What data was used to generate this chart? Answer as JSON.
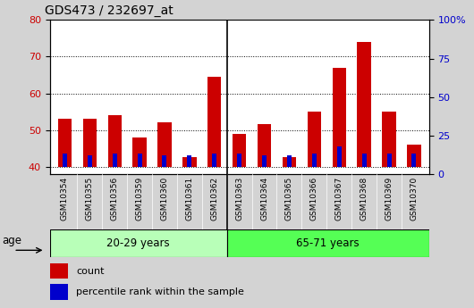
{
  "title": "GDS473 / 232697_at",
  "samples": [
    "GSM10354",
    "GSM10355",
    "GSM10356",
    "GSM10359",
    "GSM10360",
    "GSM10361",
    "GSM10362",
    "GSM10363",
    "GSM10364",
    "GSM10365",
    "GSM10366",
    "GSM10367",
    "GSM10368",
    "GSM10369",
    "GSM10370"
  ],
  "count_values": [
    53,
    53,
    54,
    48,
    52,
    42.5,
    64.5,
    49,
    51.5,
    42.5,
    55,
    67,
    74,
    55,
    46
  ],
  "percentile_values": [
    43.5,
    43,
    43.5,
    43.5,
    43,
    43,
    43.5,
    43.5,
    43,
    43,
    43.5,
    45.5,
    43.5,
    43.5,
    43.5
  ],
  "ylim_left": [
    38,
    80
  ],
  "ylim_right": [
    0,
    100
  ],
  "yticks_left": [
    40,
    50,
    60,
    70,
    80
  ],
  "yticks_right": [
    0,
    25,
    50,
    75,
    100
  ],
  "ytick_right_labels": [
    "0",
    "25",
    "50",
    "75",
    "100%"
  ],
  "group1_count": 7,
  "group1_label": "20-29 years",
  "group2_label": "65-71 years",
  "group1_color": "#b8ffb8",
  "group2_color": "#55ff55",
  "bar_color_count": "#cc0000",
  "bar_color_pct": "#0000cc",
  "bar_width": 0.55,
  "pct_bar_width": 0.18,
  "tick_label_color_left": "#cc0000",
  "tick_label_color_right": "#0000cc",
  "background_color": "#d3d3d3",
  "plot_bg_color": "white",
  "sample_area_color": "#c8c8c8",
  "age_label": "age",
  "legend_count": "count",
  "legend_pct": "percentile rank within the sample",
  "ybase": 40
}
